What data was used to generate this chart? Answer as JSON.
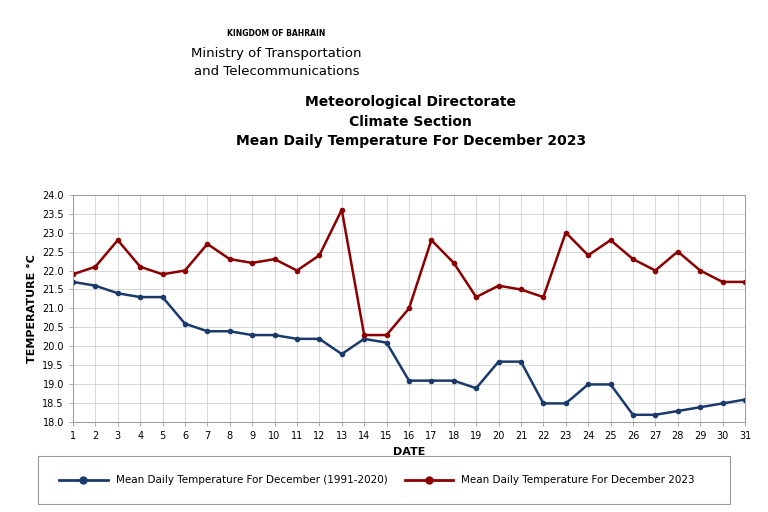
{
  "title_line1": "Meteorological Directorate",
  "title_line2": "Climate Section",
  "title_line3": "Mean Daily Temperature For December 2023",
  "header_line1": "KINGDOM OF BAHRAIN",
  "header_line2": "Ministry of Transportation",
  "header_line3": "and Telecommunications",
  "xlabel": "DATE",
  "ylabel": "TEMPERATURE °C",
  "ylim": [
    18.0,
    24.0
  ],
  "yticks": [
    18.0,
    18.5,
    19.0,
    19.5,
    20.0,
    20.5,
    21.0,
    21.5,
    22.0,
    22.5,
    23.0,
    23.5,
    24.0
  ],
  "xticks": [
    1,
    2,
    3,
    4,
    5,
    6,
    7,
    8,
    9,
    10,
    11,
    12,
    13,
    14,
    15,
    16,
    17,
    18,
    19,
    20,
    21,
    22,
    23,
    24,
    25,
    26,
    27,
    28,
    29,
    30,
    31
  ],
  "days": [
    1,
    2,
    3,
    4,
    5,
    6,
    7,
    8,
    9,
    10,
    11,
    12,
    13,
    14,
    15,
    16,
    17,
    18,
    19,
    20,
    21,
    22,
    23,
    24,
    25,
    26,
    27,
    28,
    29,
    30,
    31
  ],
  "temp_1991_2020": [
    21.7,
    21.6,
    21.4,
    21.3,
    21.3,
    20.6,
    20.4,
    20.4,
    20.3,
    20.3,
    20.2,
    20.2,
    19.8,
    20.2,
    20.1,
    19.1,
    19.1,
    19.1,
    18.9,
    19.6,
    19.6,
    18.5,
    18.5,
    19.0,
    19.0,
    18.2,
    18.2,
    18.3,
    18.4,
    18.5,
    18.6
  ],
  "temp_2023": [
    21.9,
    22.1,
    22.8,
    22.1,
    21.9,
    22.0,
    22.7,
    22.3,
    22.2,
    22.3,
    22.0,
    22.4,
    23.6,
    20.3,
    20.3,
    21.0,
    22.8,
    22.2,
    21.3,
    21.6,
    21.5,
    21.3,
    23.0,
    22.4,
    22.8,
    22.3,
    22.0,
    22.5,
    22.0,
    21.7,
    21.7
  ],
  "color_1991_2020": "#1a3a6b",
  "color_2023": "#8b0000",
  "legend_label_1991_2020": "Mean Daily Temperature For December (1991-2020)",
  "legend_label_2023": "Mean Daily Temperature For December 2023",
  "background_color": "#ffffff",
  "grid_color": "#c8c8c8",
  "line_width": 1.8,
  "marker_size": 3.0
}
